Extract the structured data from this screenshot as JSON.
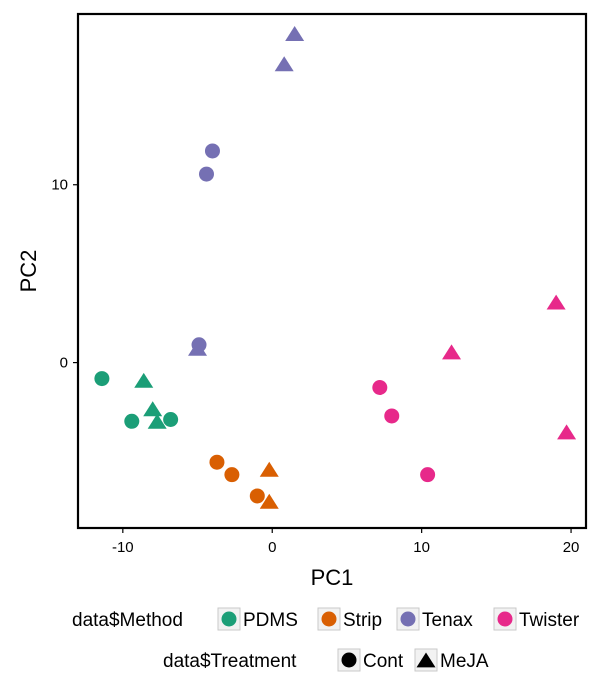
{
  "chart_data": {
    "type": "scatter",
    "xlabel": "PC1",
    "ylabel": "PC2",
    "xlim": [
      -13,
      21
    ],
    "ylim": [
      -9.3,
      19.6
    ],
    "x_ticks": [
      -10,
      0,
      10,
      20
    ],
    "x_tick_labels": [
      "-10",
      "0",
      "10",
      "20"
    ],
    "y_ticks": [
      0,
      10
    ],
    "y_tick_labels": [
      "0",
      "10"
    ],
    "grid": false,
    "legend_placement": "bottom",
    "color_legend": {
      "title": "data$Method",
      "items": [
        {
          "label": "PDMS",
          "color": "#1b9e77"
        },
        {
          "label": "Strip",
          "color": "#d95f02"
        },
        {
          "label": "Tenax",
          "color": "#7570b3"
        },
        {
          "label": "Twister",
          "color": "#e7298a"
        }
      ]
    },
    "shape_legend": {
      "title": "data$Treatment",
      "items": [
        {
          "label": "Cont",
          "shape": "circle"
        },
        {
          "label": "MeJA",
          "shape": "triangle"
        }
      ]
    },
    "series": [
      {
        "method": "PDMS",
        "treatment": "Cont",
        "points": [
          [
            -11.4,
            -0.9
          ],
          [
            -9.4,
            -3.3
          ],
          [
            -6.8,
            -3.2
          ]
        ]
      },
      {
        "method": "PDMS",
        "treatment": "MeJA",
        "points": [
          [
            -8.6,
            -1.0
          ],
          [
            -8.0,
            -2.6
          ],
          [
            -7.7,
            -3.3
          ]
        ]
      },
      {
        "method": "Strip",
        "treatment": "Cont",
        "points": [
          [
            -3.7,
            -5.6
          ],
          [
            -2.7,
            -6.3
          ],
          [
            -1.0,
            -7.5
          ]
        ]
      },
      {
        "method": "Strip",
        "treatment": "MeJA",
        "points": [
          [
            -0.2,
            -6.0
          ],
          [
            -0.2,
            -7.8
          ]
        ]
      },
      {
        "method": "Tenax",
        "treatment": "Cont",
        "points": [
          [
            -4.0,
            11.9
          ],
          [
            -4.4,
            10.6
          ],
          [
            -4.9,
            1.0
          ]
        ]
      },
      {
        "method": "Tenax",
        "treatment": "MeJA",
        "points": [
          [
            -5.0,
            0.8
          ],
          [
            0.8,
            16.8
          ],
          [
            1.5,
            18.5
          ]
        ]
      },
      {
        "method": "Twister",
        "treatment": "Cont",
        "points": [
          [
            7.2,
            -1.4
          ],
          [
            8.0,
            -3.0
          ],
          [
            10.4,
            -6.3
          ]
        ]
      },
      {
        "method": "Twister",
        "treatment": "MeJA",
        "points": [
          [
            12.0,
            0.6
          ],
          [
            19.0,
            3.4
          ],
          [
            19.7,
            -3.9
          ]
        ]
      }
    ]
  }
}
